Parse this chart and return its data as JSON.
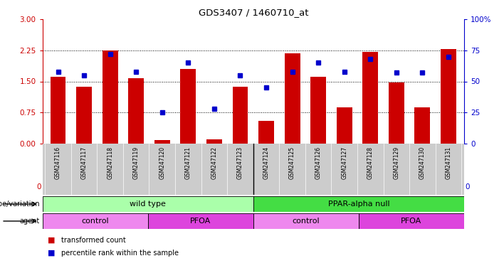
{
  "title": "GDS3407 / 1460710_at",
  "samples": [
    "GSM247116",
    "GSM247117",
    "GSM247118",
    "GSM247119",
    "GSM247120",
    "GSM247121",
    "GSM247122",
    "GSM247123",
    "GSM247124",
    "GSM247125",
    "GSM247126",
    "GSM247127",
    "GSM247128",
    "GSM247129",
    "GSM247130",
    "GSM247131"
  ],
  "bar_values": [
    1.62,
    1.38,
    2.25,
    1.58,
    0.08,
    1.8,
    0.1,
    1.38,
    0.55,
    2.18,
    1.62,
    0.88,
    2.22,
    1.48,
    0.88,
    2.28
  ],
  "dot_values": [
    58,
    55,
    72,
    58,
    25,
    65,
    28,
    55,
    45,
    58,
    65,
    58,
    68,
    57,
    57,
    70
  ],
  "bar_color": "#cc0000",
  "dot_color": "#0000cc",
  "ylim_left": [
    0,
    3
  ],
  "ylim_right": [
    0,
    100
  ],
  "yticks_left": [
    0,
    0.75,
    1.5,
    2.25,
    3
  ],
  "yticks_right": [
    0,
    25,
    50,
    75,
    100
  ],
  "ylabel_left_color": "#cc0000",
  "ylabel_right_color": "#0000cc",
  "genotype_labels": [
    {
      "label": "wild type",
      "start": 0,
      "end": 7,
      "color": "#aaffaa"
    },
    {
      "label": "PPAR-alpha null",
      "start": 8,
      "end": 15,
      "color": "#44dd44"
    }
  ],
  "agent_labels": [
    {
      "label": "control",
      "start": 0,
      "end": 3,
      "color": "#ee88ee"
    },
    {
      "label": "PFOA",
      "start": 4,
      "end": 7,
      "color": "#dd44dd"
    },
    {
      "label": "control",
      "start": 8,
      "end": 11,
      "color": "#ee88ee"
    },
    {
      "label": "PFOA",
      "start": 12,
      "end": 15,
      "color": "#dd44dd"
    }
  ],
  "legend_bar_label": "transformed count",
  "legend_dot_label": "percentile rank within the sample",
  "bg_color": "#ffffff",
  "plot_bg_color": "#ffffff",
  "tick_label_bg": "#cccccc",
  "right_tick_labels": [
    "0",
    "25",
    "50",
    "75",
    "100%"
  ]
}
